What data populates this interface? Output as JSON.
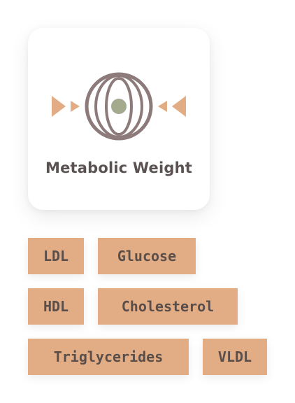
{
  "card": {
    "title": "Metabolic Weight",
    "icon": "metabolic-weight-icon",
    "colors": {
      "accent": "#e2ac84",
      "stroke": "#8c7b7a",
      "center": "#a3aa8e"
    }
  },
  "chips": [
    {
      "label": "LDL"
    },
    {
      "label": "Glucose"
    },
    {
      "label": "HDL"
    },
    {
      "label": "Cholesterol"
    },
    {
      "label": "Triglycerides"
    },
    {
      "label": "VLDL"
    }
  ]
}
